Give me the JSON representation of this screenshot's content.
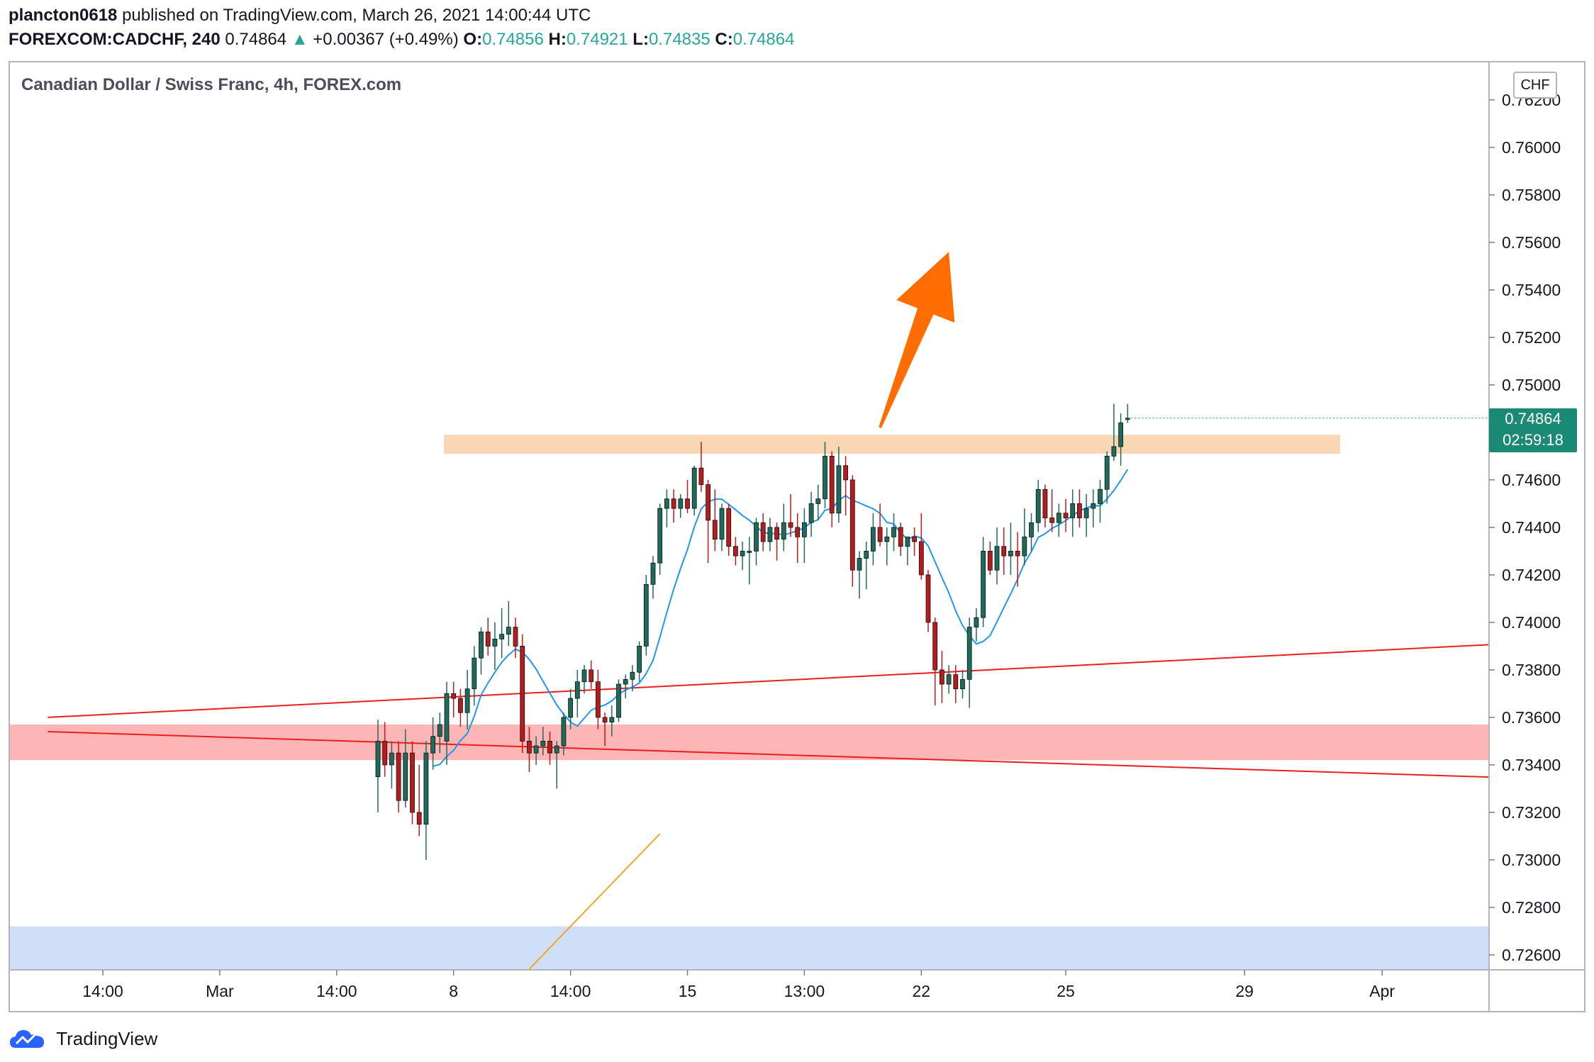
{
  "header": {
    "publisher": "plancton0618",
    "published_text": "published on TradingView.com, March 26, 2021 14:00:44 UTC",
    "symbol": "FOREXCOM:CADCHF, 240",
    "last": "0.74864",
    "change_arrow": "▲",
    "change": "+0.00367 (+0.49%)",
    "o_label": "O:",
    "o": "0.74856",
    "h_label": "H:",
    "h": "0.74921",
    "l_label": "L:",
    "l": "0.74835",
    "c_label": "C:",
    "c": "0.74864"
  },
  "chart_title": "Canadian Dollar / Swiss Franc, 4h, FOREX.com",
  "currency": "CHF",
  "price_tag": {
    "price": "0.74864",
    "countdown": "02:59:18"
  },
  "brand": "TradingView",
  "colors": {
    "up": "#1e6b5c",
    "down": "#b71c1c",
    "sma": "#2196f3",
    "resistance_zone": "#f7c99b",
    "support_zone": "#fca3a3",
    "demand_zone": "#c3d7f5",
    "trendline": "#e91e1e",
    "arrow": "#ff6d00",
    "price_tag": "#1b8a75"
  },
  "chart_data": {
    "type": "candlestick",
    "ylim": [
      0.7254,
      0.7634
    ],
    "y_ticks": [
      "0.76200",
      "0.76000",
      "0.75800",
      "0.75600",
      "0.75400",
      "0.75200",
      "0.75000",
      "0.74800",
      "0.74600",
      "0.74400",
      "0.74200",
      "0.74000",
      "0.73800",
      "0.73600",
      "0.73400",
      "0.73200",
      "0.73000",
      "0.72800",
      "0.72600"
    ],
    "x_ticks": [
      {
        "label": "14:00",
        "idx": -40
      },
      {
        "label": "Mar",
        "idx": -23
      },
      {
        "label": "14:00",
        "idx": -6
      },
      {
        "label": "8",
        "idx": 11
      },
      {
        "label": "14:00",
        "idx": 28
      },
      {
        "label": "15",
        "idx": 45
      },
      {
        "label": "13:00",
        "idx": 62
      },
      {
        "label": "22",
        "idx": 79
      },
      {
        "label": "25",
        "idx": 100
      },
      {
        "label": "29",
        "idx": 126
      },
      {
        "label": "Apr",
        "idx": 146
      }
    ],
    "zones": [
      {
        "name": "resistance",
        "from": 0.7471,
        "to": 0.7479
      },
      {
        "name": "support",
        "from": 0.7342,
        "to": 0.7357
      },
      {
        "name": "demand",
        "from": 0.7254,
        "to": 0.7272
      }
    ],
    "lines": [
      {
        "name": "rising-trendline",
        "from": [
          -48,
          0.736
        ],
        "to": [
          171,
          0.7392
        ]
      },
      {
        "name": "falling-trendline",
        "from": [
          -48,
          0.7354
        ],
        "to": [
          171,
          0.7334
        ]
      },
      {
        "name": "orange-line",
        "from": [
          22,
          0.7254
        ],
        "to": [
          41,
          0.7311
        ]
      }
    ],
    "arrow": {
      "from": [
        73,
        0.7482
      ],
      "to": [
        83,
        0.7556
      ]
    },
    "candles": [
      [
        0.7335,
        0.7359,
        0.732,
        0.735
      ],
      [
        0.735,
        0.7358,
        0.7335,
        0.734
      ],
      [
        0.734,
        0.735,
        0.733,
        0.7345
      ],
      [
        0.7345,
        0.735,
        0.732,
        0.7325
      ],
      [
        0.7325,
        0.7355,
        0.7322,
        0.7345
      ],
      [
        0.7345,
        0.735,
        0.7315,
        0.732
      ],
      [
        0.732,
        0.734,
        0.731,
        0.7315
      ],
      [
        0.7315,
        0.735,
        0.73,
        0.7345
      ],
      [
        0.7345,
        0.736,
        0.7338,
        0.7352
      ],
      [
        0.7352,
        0.7362,
        0.7345,
        0.7357
      ],
      [
        0.735,
        0.7375,
        0.734,
        0.737
      ],
      [
        0.737,
        0.7375,
        0.736,
        0.7368
      ],
      [
        0.7368,
        0.7372,
        0.7356,
        0.7362
      ],
      [
        0.7362,
        0.738,
        0.7355,
        0.7372
      ],
      [
        0.7372,
        0.739,
        0.7365,
        0.7385
      ],
      [
        0.7385,
        0.7398,
        0.7378,
        0.7396
      ],
      [
        0.7396,
        0.7402,
        0.7386,
        0.739
      ],
      [
        0.739,
        0.74,
        0.738,
        0.7393
      ],
      [
        0.7393,
        0.7406,
        0.7385,
        0.7395
      ],
      [
        0.7395,
        0.7409,
        0.739,
        0.7398
      ],
      [
        0.7398,
        0.7402,
        0.7385,
        0.739
      ],
      [
        0.739,
        0.7395,
        0.7345,
        0.735
      ],
      [
        0.735,
        0.7356,
        0.7337,
        0.7345
      ],
      [
        0.7345,
        0.7352,
        0.734,
        0.7348
      ],
      [
        0.7348,
        0.7356,
        0.7344,
        0.735
      ],
      [
        0.735,
        0.7354,
        0.734,
        0.7345
      ],
      [
        0.7345,
        0.735,
        0.733,
        0.7348
      ],
      [
        0.7348,
        0.7362,
        0.7344,
        0.736
      ],
      [
        0.736,
        0.7372,
        0.7355,
        0.7368
      ],
      [
        0.7368,
        0.738,
        0.736,
        0.7375
      ],
      [
        0.7375,
        0.7382,
        0.737,
        0.738
      ],
      [
        0.738,
        0.7384,
        0.7372,
        0.7375
      ],
      [
        0.7375,
        0.738,
        0.7355,
        0.736
      ],
      [
        0.736,
        0.7362,
        0.7348,
        0.7358
      ],
      [
        0.7358,
        0.7365,
        0.7352,
        0.736
      ],
      [
        0.736,
        0.7376,
        0.7358,
        0.7374
      ],
      [
        0.7374,
        0.7378,
        0.7368,
        0.7376
      ],
      [
        0.7376,
        0.7382,
        0.7371,
        0.7379
      ],
      [
        0.7379,
        0.7392,
        0.7375,
        0.739
      ],
      [
        0.739,
        0.742,
        0.7386,
        0.7416
      ],
      [
        0.7416,
        0.7428,
        0.741,
        0.7425
      ],
      [
        0.7425,
        0.745,
        0.742,
        0.7448
      ],
      [
        0.7448,
        0.7456,
        0.744,
        0.7452
      ],
      [
        0.7452,
        0.7456,
        0.7442,
        0.7448
      ],
      [
        0.7448,
        0.7454,
        0.7444,
        0.7452
      ],
      [
        0.7452,
        0.746,
        0.7446,
        0.7448
      ],
      [
        0.7448,
        0.7466,
        0.7445,
        0.7465
      ],
      [
        0.7465,
        0.7476,
        0.7455,
        0.7458
      ],
      [
        0.7458,
        0.746,
        0.7425,
        0.7443
      ],
      [
        0.7443,
        0.7456,
        0.743,
        0.7435
      ],
      [
        0.7435,
        0.745,
        0.743,
        0.7448
      ],
      [
        0.7448,
        0.745,
        0.7428,
        0.7432
      ],
      [
        0.7432,
        0.7436,
        0.7424,
        0.7428
      ],
      [
        0.7428,
        0.7434,
        0.7422,
        0.743
      ],
      [
        0.743,
        0.7436,
        0.7416,
        0.743
      ],
      [
        0.743,
        0.7444,
        0.7424,
        0.7442
      ],
      [
        0.7442,
        0.7446,
        0.743,
        0.7434
      ],
      [
        0.7434,
        0.7444,
        0.743,
        0.744
      ],
      [
        0.744,
        0.7442,
        0.7426,
        0.7435
      ],
      [
        0.7435,
        0.745,
        0.743,
        0.7442
      ],
      [
        0.7442,
        0.7454,
        0.7436,
        0.744
      ],
      [
        0.744,
        0.7446,
        0.7425,
        0.7436
      ],
      [
        0.7436,
        0.7448,
        0.7425,
        0.7442
      ],
      [
        0.7442,
        0.7455,
        0.7436,
        0.745
      ],
      [
        0.745,
        0.7458,
        0.7443,
        0.7452
      ],
      [
        0.7452,
        0.7476,
        0.7448,
        0.747
      ],
      [
        0.747,
        0.7472,
        0.744,
        0.7446
      ],
      [
        0.7446,
        0.7474,
        0.7442,
        0.7466
      ],
      [
        0.7466,
        0.747,
        0.7445,
        0.746
      ],
      [
        0.746,
        0.7462,
        0.7415,
        0.7422
      ],
      [
        0.7422,
        0.743,
        0.741,
        0.7427
      ],
      [
        0.7427,
        0.7434,
        0.7414,
        0.743
      ],
      [
        0.743,
        0.7446,
        0.7424,
        0.744
      ],
      [
        0.744,
        0.745,
        0.7432,
        0.7434
      ],
      [
        0.7434,
        0.744,
        0.7424,
        0.7436
      ],
      [
        0.7436,
        0.7446,
        0.743,
        0.744
      ],
      [
        0.744,
        0.7442,
        0.7428,
        0.7432
      ],
      [
        0.7432,
        0.7434,
        0.7424,
        0.7436
      ],
      [
        0.7436,
        0.744,
        0.7428,
        0.7434
      ],
      [
        0.7434,
        0.7446,
        0.7418,
        0.742
      ],
      [
        0.742,
        0.7422,
        0.7396,
        0.74
      ],
      [
        0.74,
        0.7402,
        0.7365,
        0.738
      ],
      [
        0.738,
        0.7388,
        0.7366,
        0.7374
      ],
      [
        0.7374,
        0.7382,
        0.737,
        0.7378
      ],
      [
        0.7378,
        0.7382,
        0.7366,
        0.7372
      ],
      [
        0.7372,
        0.738,
        0.7368,
        0.7376
      ],
      [
        0.7376,
        0.7402,
        0.7364,
        0.7398
      ],
      [
        0.7398,
        0.7406,
        0.7392,
        0.7402
      ],
      [
        0.7402,
        0.7436,
        0.7398,
        0.743
      ],
      [
        0.743,
        0.7434,
        0.742,
        0.7422
      ],
      [
        0.7422,
        0.744,
        0.7416,
        0.7432
      ],
      [
        0.7432,
        0.744,
        0.742,
        0.7428
      ],
      [
        0.7428,
        0.7442,
        0.742,
        0.743
      ],
      [
        0.743,
        0.7438,
        0.7415,
        0.7428
      ],
      [
        0.7428,
        0.7448,
        0.7424,
        0.7436
      ],
      [
        0.7436,
        0.7446,
        0.743,
        0.7442
      ],
      [
        0.7442,
        0.746,
        0.7438,
        0.7456
      ],
      [
        0.7456,
        0.7458,
        0.744,
        0.7444
      ],
      [
        0.7444,
        0.7456,
        0.7438,
        0.7442
      ],
      [
        0.7442,
        0.745,
        0.7436,
        0.7446
      ],
      [
        0.7446,
        0.7452,
        0.7438,
        0.7444
      ],
      [
        0.7444,
        0.7456,
        0.7436,
        0.745
      ],
      [
        0.745,
        0.7456,
        0.744,
        0.7444
      ],
      [
        0.7444,
        0.7454,
        0.7436,
        0.7448
      ],
      [
        0.7448,
        0.7456,
        0.744,
        0.745
      ],
      [
        0.745,
        0.746,
        0.7442,
        0.7456
      ],
      [
        0.7456,
        0.7472,
        0.745,
        0.747
      ],
      [
        0.747,
        0.7492,
        0.7468,
        0.7474
      ],
      [
        0.7474,
        0.7488,
        0.7466,
        0.7484
      ],
      [
        0.7486,
        0.7492,
        0.7484,
        0.7486
      ]
    ]
  }
}
